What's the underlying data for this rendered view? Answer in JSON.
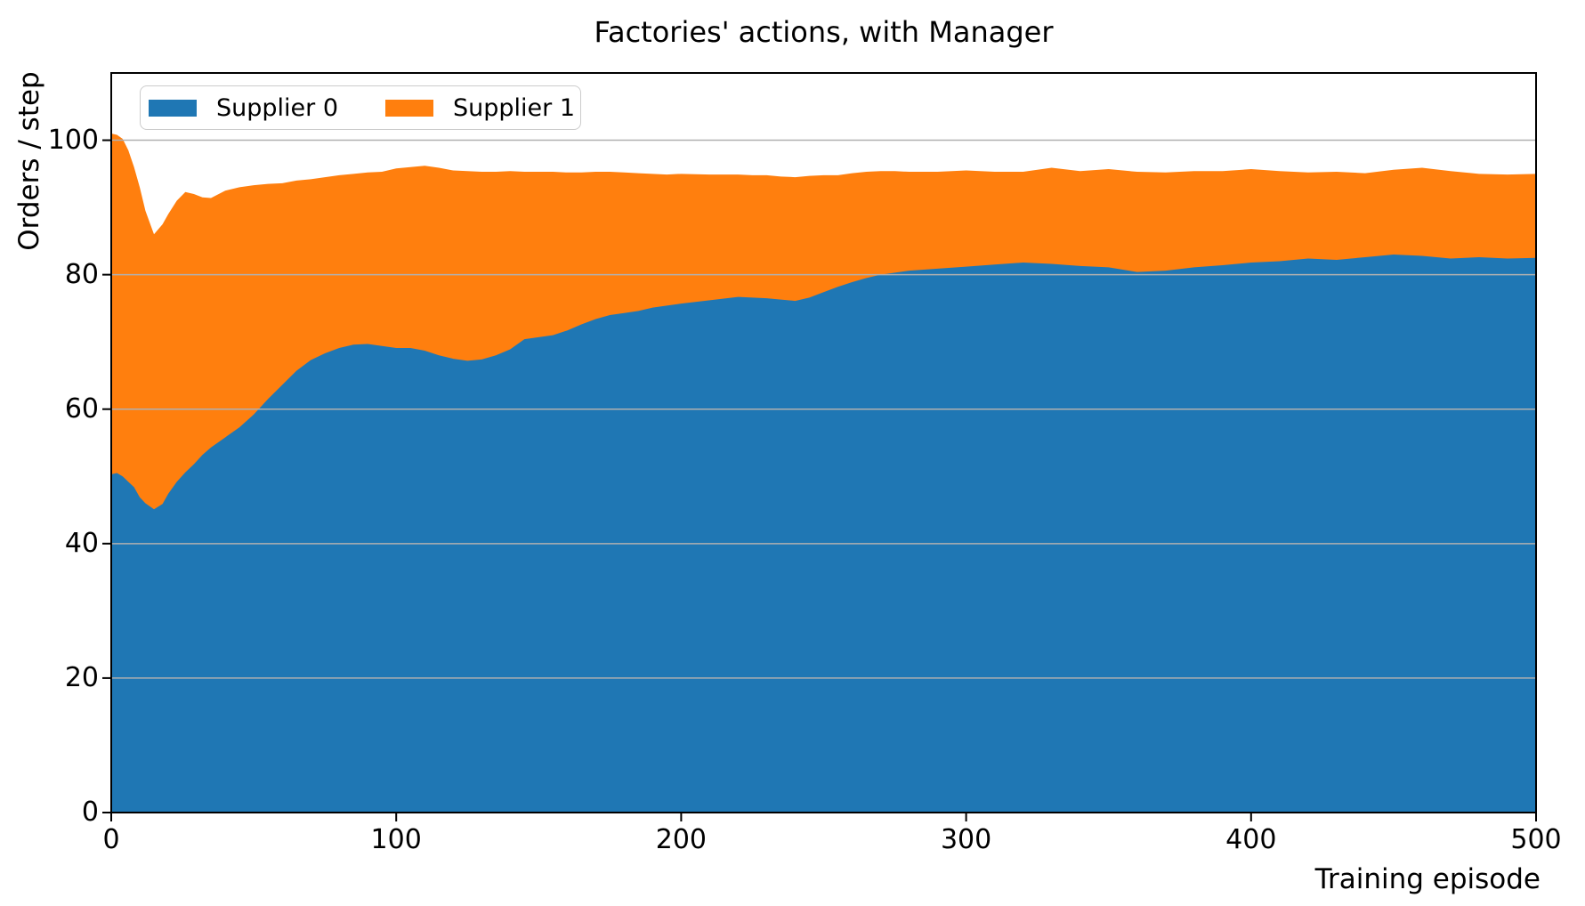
{
  "chart_data": {
    "type": "area",
    "stacked": true,
    "title": "Factories' actions, with Manager",
    "xlabel": "Training episode",
    "ylabel": "Orders / step",
    "xlim": [
      0,
      500
    ],
    "ylim": [
      0,
      110
    ],
    "x_ticks": [
      0,
      100,
      200,
      300,
      400,
      500
    ],
    "x_tick_labels": [
      "0",
      "100",
      "200",
      "300",
      "400",
      "500"
    ],
    "y_ticks": [
      0,
      20,
      40,
      60,
      80,
      100
    ],
    "y_tick_labels": [
      "0",
      "20",
      "40",
      "60",
      "80",
      "100"
    ],
    "grid": "horizontal",
    "grid_color": "#b0b0b0",
    "frame_color": "#000000",
    "background_color": "#ffffff",
    "legend_position": "upper left",
    "x": [
      0,
      2,
      4,
      6,
      8,
      10,
      12,
      15,
      18,
      20,
      23,
      26,
      29,
      32,
      35,
      40,
      45,
      50,
      55,
      60,
      65,
      70,
      75,
      80,
      85,
      90,
      95,
      100,
      105,
      110,
      115,
      120,
      125,
      130,
      135,
      140,
      145,
      150,
      155,
      160,
      165,
      170,
      175,
      180,
      185,
      190,
      195,
      200,
      210,
      220,
      225,
      230,
      235,
      240,
      245,
      250,
      255,
      260,
      265,
      270,
      275,
      280,
      290,
      300,
      310,
      320,
      330,
      340,
      350,
      360,
      370,
      380,
      390,
      400,
      410,
      420,
      430,
      440,
      450,
      460,
      470,
      480,
      490,
      500
    ],
    "series": [
      {
        "name": "Supplier 0",
        "color": "#1f77b4",
        "values": [
          50.3,
          50.5,
          50.0,
          49.2,
          48.4,
          46.9,
          46.0,
          45.1,
          45.9,
          47.4,
          49.2,
          50.6,
          51.8,
          53.2,
          54.3,
          55.8,
          57.3,
          59.2,
          61.5,
          63.6,
          65.7,
          67.3,
          68.3,
          69.1,
          69.6,
          69.7,
          69.4,
          69.1,
          69.1,
          68.7,
          68.0,
          67.5,
          67.2,
          67.4,
          68.0,
          68.9,
          70.4,
          70.7,
          71.0,
          71.7,
          72.6,
          73.4,
          74.0,
          74.3,
          74.6,
          75.1,
          75.4,
          75.7,
          76.2,
          76.7,
          76.6,
          76.5,
          76.3,
          76.1,
          76.6,
          77.4,
          78.2,
          78.9,
          79.5,
          80.0,
          80.3,
          80.6,
          80.9,
          81.2,
          81.5,
          81.8,
          81.6,
          81.3,
          81.1,
          80.4,
          80.6,
          81.1,
          81.4,
          81.8,
          82.0,
          82.4,
          82.2,
          82.6,
          83.0,
          82.8,
          82.4,
          82.6,
          82.4,
          82.5
        ]
      },
      {
        "name": "Supplier 1",
        "color": "#ff7f0e",
        "values": [
          50.7,
          50.3,
          50.2,
          49.3,
          47.6,
          46.1,
          43.5,
          40.9,
          41.6,
          41.6,
          41.8,
          41.7,
          40.2,
          38.3,
          37.1,
          36.7,
          35.7,
          34.1,
          32.0,
          30.0,
          28.3,
          26.9,
          26.2,
          25.7,
          25.4,
          25.5,
          25.9,
          26.7,
          26.9,
          27.5,
          27.9,
          28.0,
          28.2,
          27.9,
          27.3,
          26.5,
          24.9,
          24.6,
          24.3,
          23.5,
          22.6,
          21.9,
          21.3,
          20.9,
          20.5,
          19.9,
          19.5,
          19.3,
          18.7,
          18.2,
          18.2,
          18.3,
          18.3,
          18.4,
          18.1,
          17.4,
          16.6,
          16.2,
          15.8,
          15.4,
          15.1,
          14.7,
          14.4,
          14.3,
          13.8,
          13.5,
          14.3,
          14.1,
          14.6,
          14.9,
          14.6,
          14.3,
          14.0,
          13.9,
          13.4,
          12.8,
          13.1,
          12.5,
          12.6,
          13.1,
          13.0,
          12.4,
          12.5,
          12.5
        ]
      }
    ]
  }
}
